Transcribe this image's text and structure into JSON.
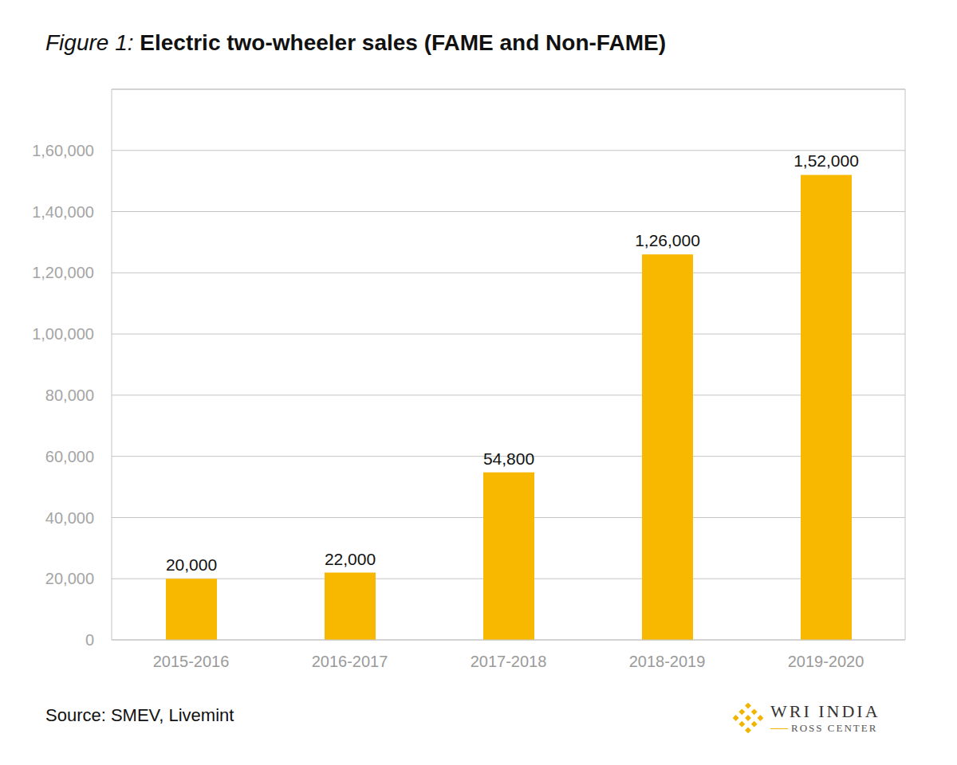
{
  "chart_data": {
    "type": "bar",
    "title_prefix": "Figure 1:",
    "title": "Electric two-wheeler sales (FAME and Non-FAME)",
    "categories": [
      "2015-2016",
      "2016-2017",
      "2017-2018",
      "2018-2019",
      "2019-2020"
    ],
    "values": [
      20000,
      22000,
      54800,
      126000,
      152000
    ],
    "value_labels": [
      "20,000",
      "22,000",
      "54,800",
      "1,26,000",
      "1,52,000"
    ],
    "data_labels": true,
    "color": "#f9b800",
    "ylim": [
      0,
      180000
    ],
    "yticks": [
      0,
      {
        "value": 20000,
        "label": "20,000"
      },
      {
        "value": 40000,
        "label": "40,000"
      },
      {
        "value": 60000,
        "label": "60,000"
      },
      {
        "value": 80000,
        "label": "80,000"
      },
      {
        "value": 100000,
        "label": "1,00,000"
      },
      {
        "value": 120000,
        "label": "1,20,000"
      },
      {
        "value": 140000,
        "label": "1,40,000"
      },
      {
        "value": 160000,
        "label": "1,60,000"
      }
    ],
    "grid": true,
    "source": "Source: SMEV, Livemint",
    "logo": {
      "name": "WRI INDIA",
      "subtitle": "ROSS CENTER"
    }
  }
}
